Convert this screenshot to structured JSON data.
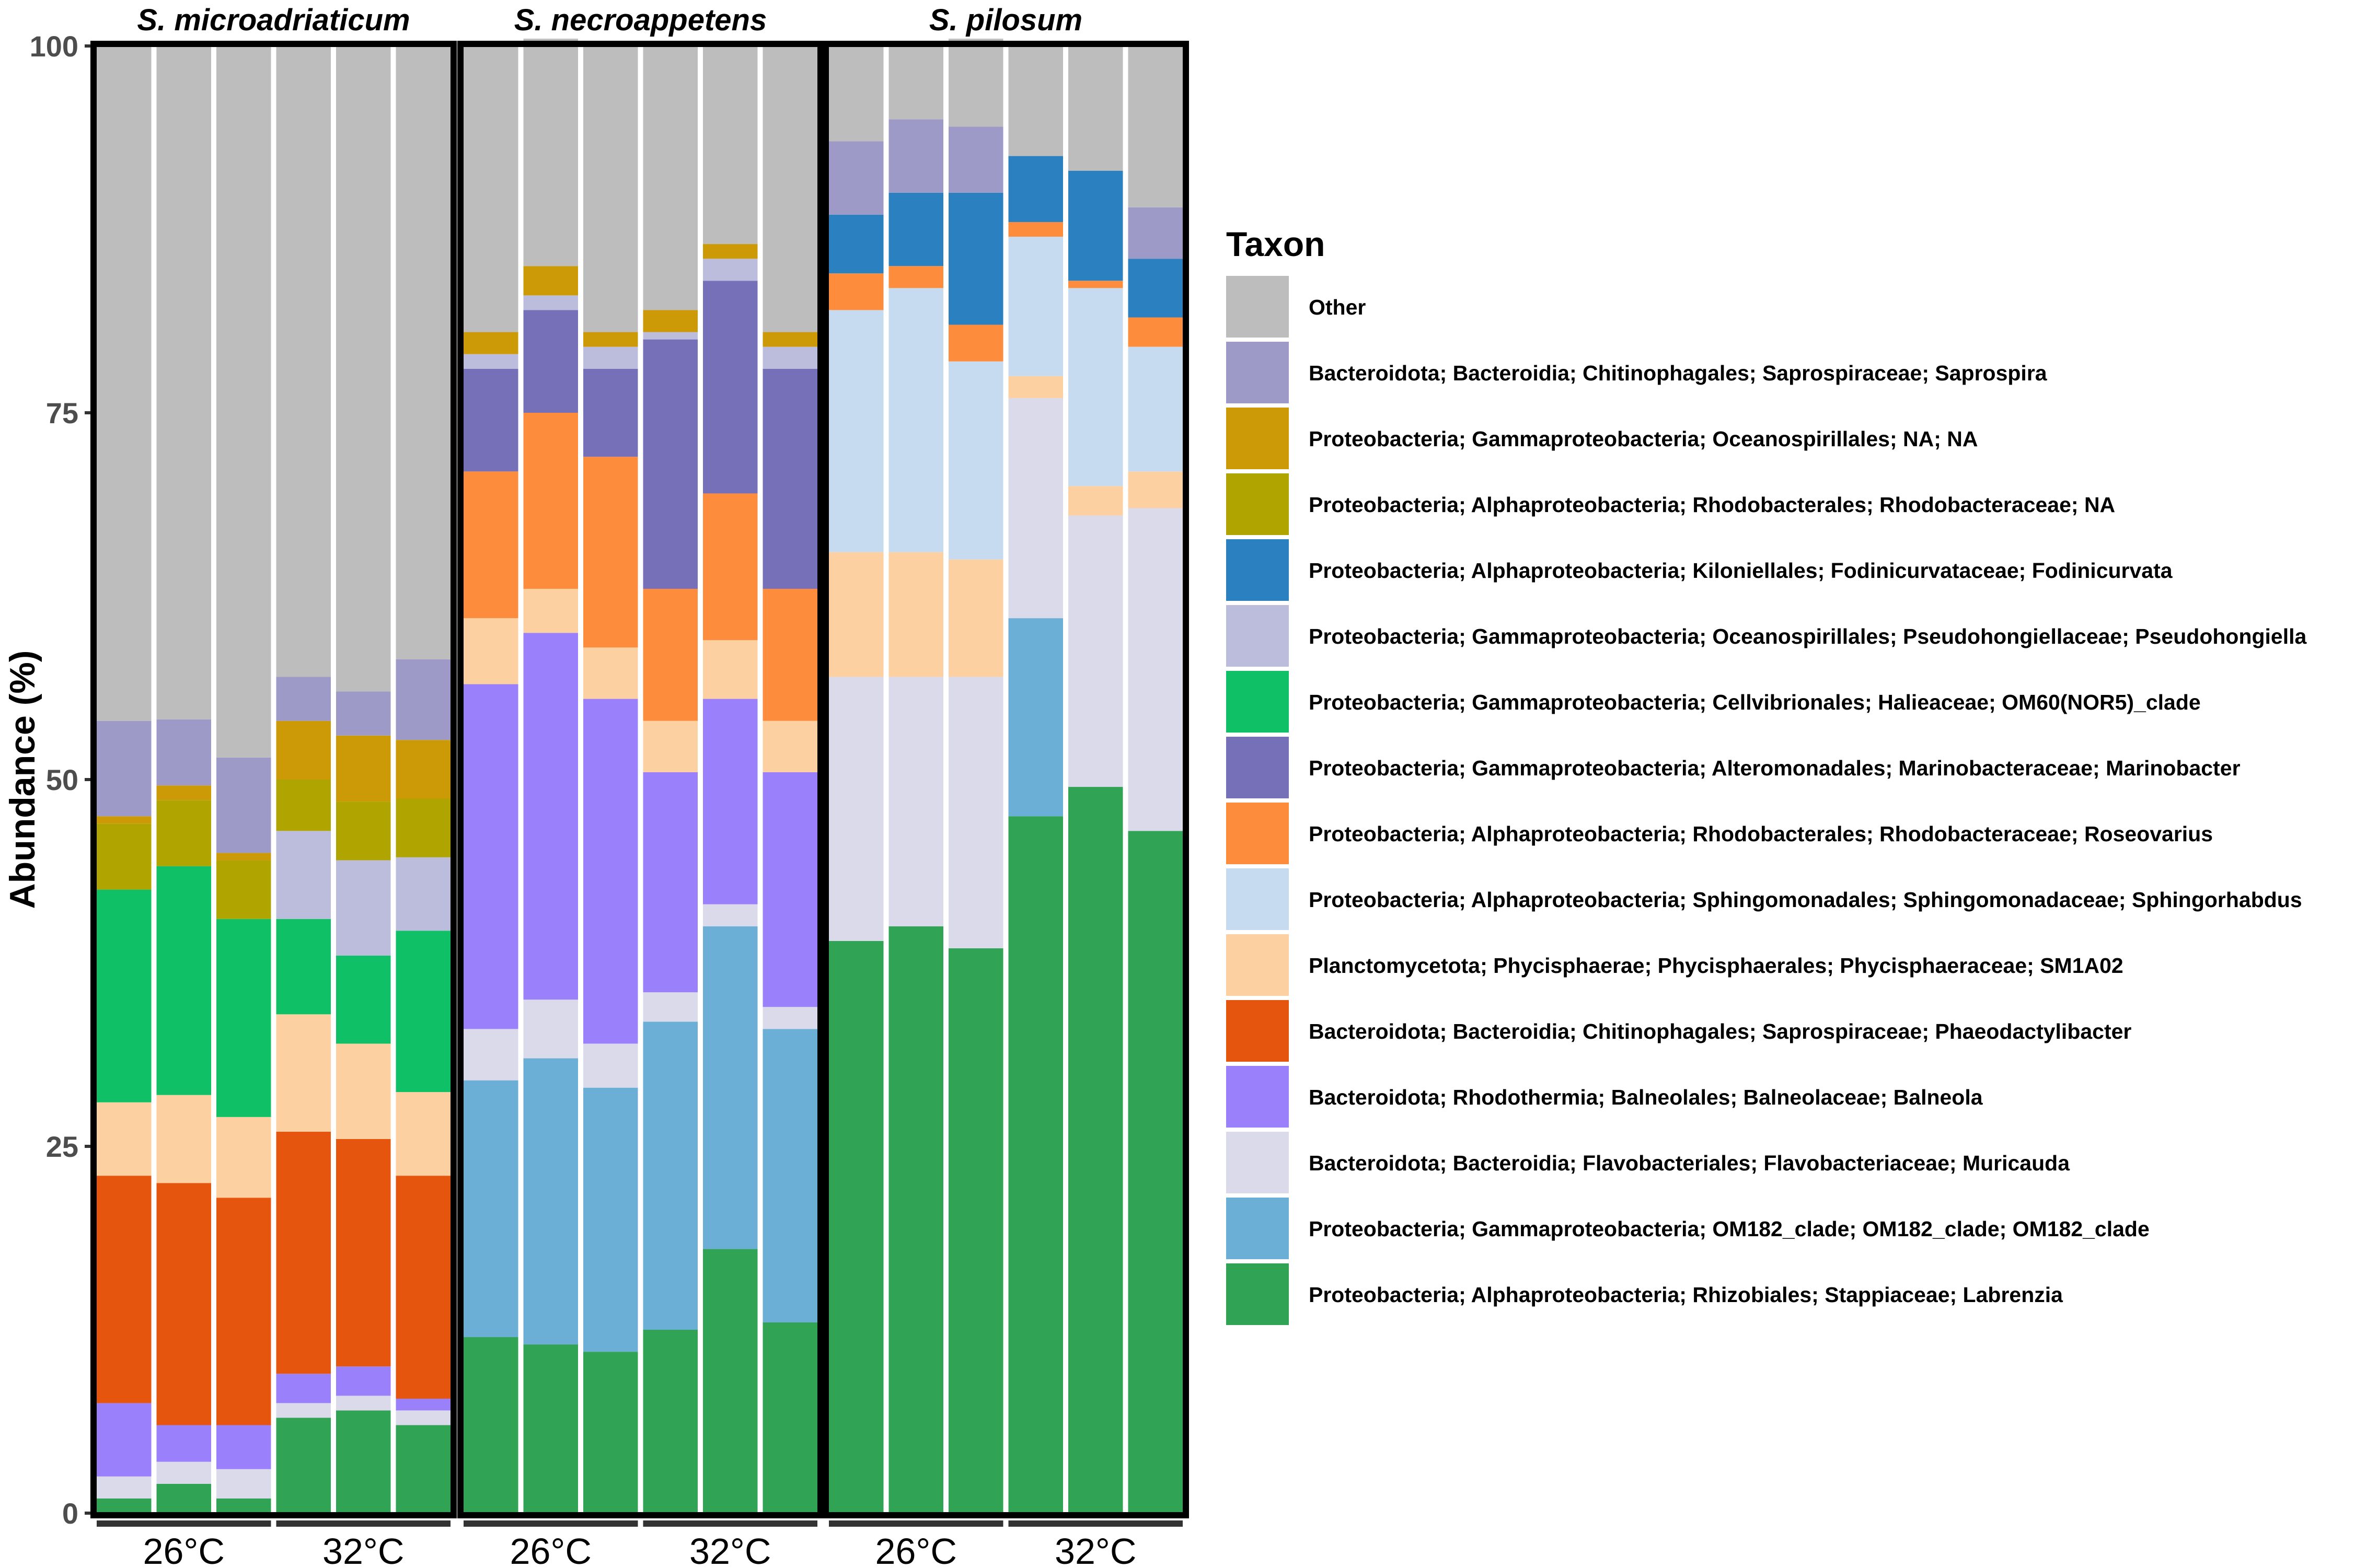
{
  "chart_data": {
    "type": "bar",
    "stacked": true,
    "ylabel": "Abundance (%)",
    "ylim": [
      0,
      100
    ],
    "yticks": [
      0,
      25,
      50,
      75,
      100
    ],
    "legend_title": "Taxon",
    "legend_position": "right",
    "taxa": [
      {
        "name": "Other",
        "color": "#bdbdbd"
      },
      {
        "name": "Bacteroidota; Bacteroidia; Chitinophagales; Saprospiraceae; Saprospira",
        "color": "#9e9ac8"
      },
      {
        "name": "Proteobacteria; Gammaproteobacteria; Oceanospirillales; NA; NA",
        "color": "#cc9a06"
      },
      {
        "name": "Proteobacteria; Alphaproteobacteria; Rhodobacterales; Rhodobacteraceae; NA",
        "color": "#b0a500"
      },
      {
        "name": "Proteobacteria; Alphaproteobacteria; Kiloniellales; Fodinicurvataceae; Fodinicurvata",
        "color": "#2b80c0"
      },
      {
        "name": "Proteobacteria; Gammaproteobacteria; Oceanospirillales; Pseudohongiellaceae; Pseudohongiella",
        "color": "#bcbddc"
      },
      {
        "name": "Proteobacteria; Gammaproteobacteria; Cellvibrionales; Halieaceae; OM60(NOR5)_clade",
        "color": "#10c067"
      },
      {
        "name": "Proteobacteria; Gammaproteobacteria; Alteromonadales; Marinobacteraceae; Marinobacter",
        "color": "#7670b8"
      },
      {
        "name": "Proteobacteria; Alphaproteobacteria; Rhodobacterales; Rhodobacteraceae; Roseovarius",
        "color": "#fd8d3c"
      },
      {
        "name": "Proteobacteria; Alphaproteobacteria; Sphingomonadales; Sphingomonadaceae; Sphingorhabdus",
        "color": "#c6dbef"
      },
      {
        "name": "Planctomycetota; Phycisphaerae; Phycisphaerales; Phycisphaeraceae; SM1A02",
        "color": "#fdd0a2"
      },
      {
        "name": "Bacteroidota; Bacteroidia; Chitinophagales; Saprospiraceae; Phaeodactylibacter",
        "color": "#e6550d"
      },
      {
        "name": "Bacteroidota; Rhodothermia; Balneolales; Balneolaceae; Balneola",
        "color": "#9a80fb"
      },
      {
        "name": "Bacteroidota; Bacteroidia; Flavobacteriales; Flavobacteriaceae; Muricauda",
        "color": "#dadaeb"
      },
      {
        "name": "Proteobacteria; Gammaproteobacteria; OM182_clade; OM182_clade; OM182_clade",
        "color": "#6baed6"
      },
      {
        "name": "Proteobacteria; Alphaproteobacteria; Rhizobiales; Stappiaceae; Labrenzia",
        "color": "#31a354"
      }
    ],
    "stack_order_note": "stack values listed bottom-to-top: Labrenzia, OM182_clade, Muricauda, Balneola, Phaeodactylibacter, SM1A02, Sphingorhabdus, Roseovarius, Marinobacter, OM60(NOR5)_clade, Pseudohongiella, Fodinicurvata, Rhodobacteraceae NA, Oceanospirillales NA, Saprospira, Other",
    "panels": [
      {
        "title": "S. microadriaticum",
        "groups": [
          {
            "label": "26°C",
            "samples": [
              [
                1.0,
                0.0,
                1.5,
                5.0,
                15.5,
                5.0,
                0.0,
                0.0,
                0.0,
                14.5,
                0.0,
                0.0,
                4.5,
                0.5,
                6.5,
                46.0
              ],
              [
                2.0,
                0.0,
                1.5,
                2.5,
                16.5,
                6.0,
                0.0,
                0.0,
                0.0,
                15.6,
                0.0,
                0.0,
                4.5,
                1.0,
                4.5,
                45.9
              ],
              [
                1.0,
                0.0,
                2.0,
                3.0,
                15.5,
                5.5,
                0.0,
                0.0,
                0.0,
                13.5,
                0.0,
                0.0,
                4.0,
                0.5,
                6.5,
                48.5
              ]
            ]
          },
          {
            "label": "32°C",
            "samples": [
              [
                6.5,
                0.0,
                1.0,
                2.0,
                16.5,
                8.0,
                0.0,
                0.0,
                0.0,
                6.5,
                6.0,
                0.0,
                3.5,
                4.0,
                3.0,
                43.0
              ],
              [
                7.0,
                0.0,
                1.0,
                2.0,
                15.5,
                6.5,
                0.0,
                0.0,
                0.0,
                6.0,
                6.5,
                0.0,
                4.0,
                4.5,
                3.0,
                44.0
              ],
              [
                6.0,
                0.0,
                1.0,
                0.8,
                15.2,
                5.7,
                0.0,
                0.0,
                0.0,
                11.0,
                5.0,
                0.0,
                4.0,
                4.0,
                5.5,
                41.8
              ]
            ]
          }
        ]
      },
      {
        "title": "S. necroappetens",
        "groups": [
          {
            "label": "26°C",
            "samples": [
              [
                12.0,
                17.5,
                3.5,
                23.5,
                0.0,
                4.5,
                0.0,
                10.0,
                7.0,
                0.0,
                1.0,
                0.0,
                0.0,
                1.5,
                0.0,
                19.5
              ],
              [
                11.5,
                19.5,
                4.0,
                25.0,
                0.0,
                3.0,
                0.0,
                12.0,
                7.0,
                0.0,
                1.0,
                0.0,
                0.0,
                2.0,
                0.0,
                15.5
              ]
            ]
          }
        ]
      }
    ]
  }
}
